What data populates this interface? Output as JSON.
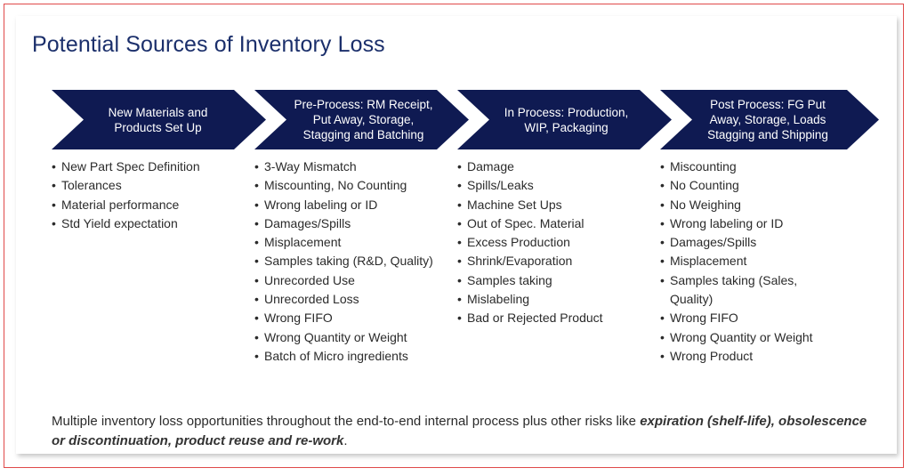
{
  "title": "Potential Sources of Inventory Loss",
  "stages": [
    {
      "header_lines": [
        "New Materials and",
        "Products Set Up"
      ],
      "items": [
        "New Part Spec Definition",
        "Tolerances",
        "Material performance",
        "Std Yield expectation"
      ]
    },
    {
      "header_lines": [
        "Pre-Process: RM Receipt,",
        "Put Away, Storage,",
        "Stagging and Batching"
      ],
      "items": [
        "3-Way Mismatch",
        "Miscounting, No Counting",
        "Wrong labeling or ID",
        "Damages/Spills",
        "Misplacement",
        "Samples taking (R&D, Quality)",
        "Unrecorded Use",
        "Unrecorded Loss",
        "Wrong FIFO",
        "Wrong Quantity or Weight",
        "Batch of Micro ingredients"
      ]
    },
    {
      "header_lines": [
        "In Process: Production,",
        "WIP, Packaging"
      ],
      "items": [
        "Damage",
        "Spills/Leaks",
        "Machine Set Ups",
        "Out of Spec. Material",
        "Excess Production",
        "Shrink/Evaporation",
        "Samples taking",
        "Mislabeling",
        "Bad or Rejected Product"
      ]
    },
    {
      "header_lines": [
        "Post Process: FG Put",
        "Away, Storage, Loads",
        "Stagging and Shipping"
      ],
      "items": [
        "Miscounting",
        "No Counting",
        "No Weighing",
        "Wrong labeling or ID",
        "Damages/Spills",
        "Misplacement",
        "Samples taking (Sales, Quality)",
        "Wrong FIFO",
        "Wrong Quantity or Weight",
        "Wrong Product"
      ]
    }
  ],
  "footer": {
    "plain": "Multiple inventory loss opportunities throughout the end-to-end internal process plus other risks like ",
    "emphasis": "expiration (shelf-life), obsolescence or discontinuation, product reuse and re-work",
    "end": "."
  },
  "colors": {
    "chevron": "#0f1a52",
    "title": "#1b2f6b",
    "frame": "#e04a4a"
  }
}
